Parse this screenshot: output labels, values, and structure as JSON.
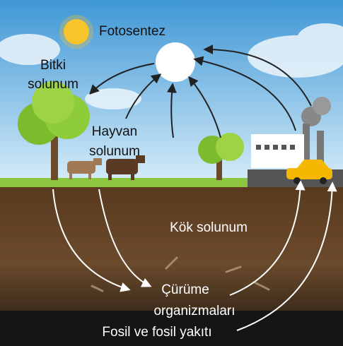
{
  "labels": {
    "photosynthesis": "Fotosentez",
    "plant_respiration": [
      "Bitki",
      "solunum"
    ],
    "animal_respiration": [
      "Hayvan",
      "solunum"
    ],
    "root_respiration": "Kök solunum",
    "decomposers": [
      "Çürüme",
      "organizmaları"
    ],
    "fossil_fuel": "Fosil ve fosil yakıtı"
  }
}
